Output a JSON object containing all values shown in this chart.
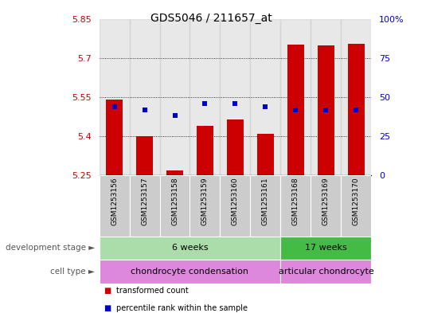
{
  "title": "GDS5046 / 211657_at",
  "samples": [
    "GSM1253156",
    "GSM1253157",
    "GSM1253158",
    "GSM1253159",
    "GSM1253160",
    "GSM1253161",
    "GSM1253168",
    "GSM1253169",
    "GSM1253170"
  ],
  "bar_values": [
    5.54,
    5.4,
    5.27,
    5.44,
    5.465,
    5.41,
    5.75,
    5.748,
    5.755
  ],
  "percentile_values": [
    44,
    42,
    38,
    46,
    46,
    44,
    42,
    42,
    42
  ],
  "ymin": 5.25,
  "ymax": 5.85,
  "yticks": [
    5.25,
    5.4,
    5.55,
    5.7,
    5.85
  ],
  "ytick_labels": [
    "5.25",
    "5.4",
    "5.55",
    "5.7",
    "5.85"
  ],
  "y2min": 0,
  "y2max": 100,
  "y2ticks": [
    0,
    25,
    50,
    75,
    100
  ],
  "y2tick_labels": [
    "0",
    "25",
    "50",
    "75",
    "100%"
  ],
  "bar_color": "#cc0000",
  "percentile_color": "#0000cc",
  "tick_label_color_left": "#cc0000",
  "tick_label_color_right": "#0000cc",
  "col_bg_color": "#cccccc",
  "dev_stage_groups": [
    {
      "label": "6 weeks",
      "start": 0,
      "end": 6,
      "color": "#aaddaa"
    },
    {
      "label": "17 weeks",
      "start": 6,
      "end": 9,
      "color": "#44bb44"
    }
  ],
  "cell_type_groups": [
    {
      "label": "chondrocyte condensation",
      "start": 0,
      "end": 6,
      "color": "#dd88dd"
    },
    {
      "label": "articular chondrocyte",
      "start": 6,
      "end": 9,
      "color": "#dd88dd"
    }
  ],
  "legend_items": [
    {
      "label": "transformed count",
      "color": "#cc0000"
    },
    {
      "label": "percentile rank within the sample",
      "color": "#0000cc"
    }
  ],
  "dev_stage_label": "development stage",
  "cell_type_label": "cell type"
}
